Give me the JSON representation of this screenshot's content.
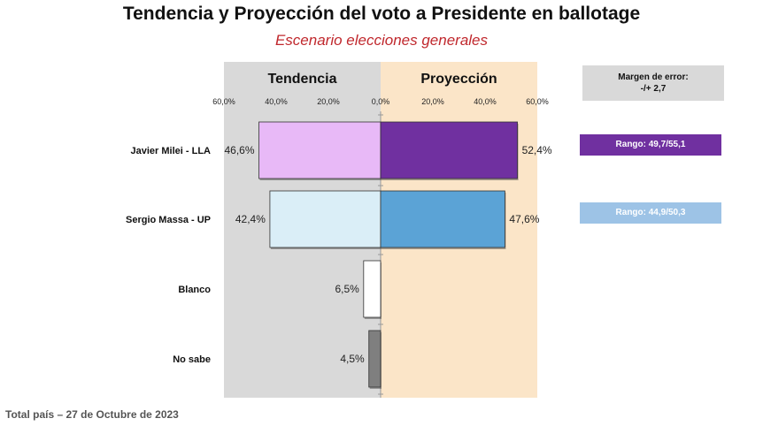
{
  "title": "Tendencia y Proyección del voto a Presidente en ballotage",
  "subtitle": "Escenario elecciones generales",
  "footer": "Total país – 27 de Octubre de 2023",
  "margin": {
    "label": "Margen de error:",
    "value": "-/+  2,7"
  },
  "ranges": [
    {
      "candidate": "Javier Milei - LLA",
      "label": "Rango: 49,7/55,1",
      "color": "#7030a0"
    },
    {
      "candidate": "Sergio Massa - UP",
      "label": "Rango: 44,9/50,3",
      "color": "#9dc3e6"
    }
  ],
  "chart_data": {
    "type": "bar",
    "orientation": "horizontal-diverging",
    "panels": [
      "Tendencia",
      "Proyección"
    ],
    "categories": [
      "Javier Milei - LLA",
      "Sergio Massa - UP",
      "Blanco",
      "No sabe"
    ],
    "series": [
      {
        "name": "Tendencia",
        "values": [
          46.6,
          42.4,
          6.5,
          4.5
        ],
        "labels": [
          "46,6%",
          "42,4%",
          "6,5%",
          "4,5%"
        ],
        "colors": [
          "#e8b9f7",
          "#daeef7",
          "#ffffff",
          "#7f7f7f"
        ]
      },
      {
        "name": "Proyección",
        "values": [
          52.4,
          47.6,
          null,
          null
        ],
        "labels": [
          "52,4%",
          "47,6%",
          "",
          ""
        ],
        "colors": [
          "#7030a0",
          "#5ba3d6"
        ]
      }
    ],
    "xlim": [
      0,
      60
    ],
    "left_ticks": [
      "60,0%",
      "40,0%",
      "20,0%",
      "0,0%"
    ],
    "right_ticks": [
      "20,0%",
      "40,0%",
      "60,0%"
    ],
    "panel_colors": {
      "Tendencia": "#d9d9d9",
      "Proyección": "#fbe5c8"
    }
  }
}
